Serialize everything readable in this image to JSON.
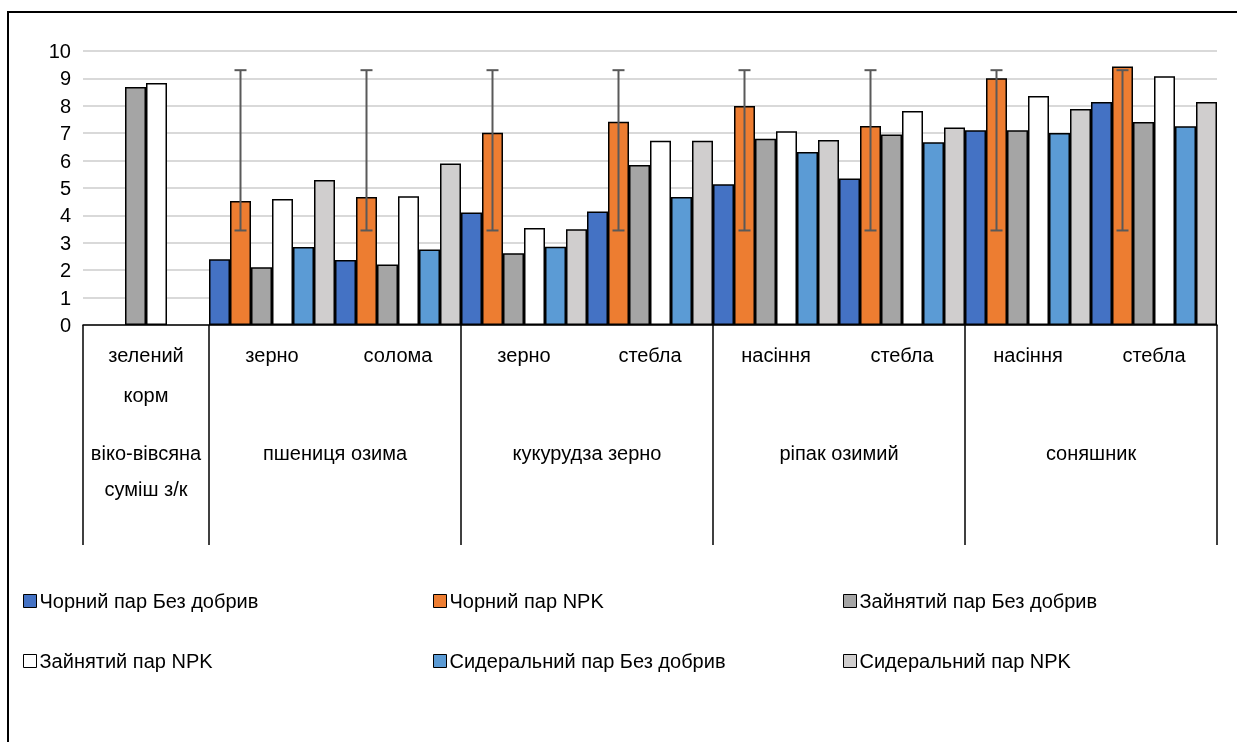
{
  "chart_data": {
    "type": "bar",
    "categories": [
      "зелений корм",
      "зерно",
      "солома",
      "зерно",
      "стебла",
      "насіння",
      "стебла",
      "насіння",
      "стебла"
    ],
    "annotations": [
      "віко-вівсяна суміш з/к",
      "пшениця озима",
      "кукурудза зерно",
      "ріпак озимий",
      "соняшник"
    ],
    "series": [
      {
        "name": "Чорний пар Без добрив",
        "color": "#4472c4",
        "values": [
          null,
          2.4,
          2.37,
          4.11,
          4.14,
          5.14,
          5.35,
          7.11,
          8.14
        ]
      },
      {
        "name": "Чорний пар NPK",
        "color": "#ed7d31",
        "values": [
          null,
          4.53,
          4.67,
          7.02,
          7.42,
          7.99,
          7.26,
          9.01,
          9.43
        ],
        "errors": [
          null,
          [
            3.45,
            9.3
          ],
          [
            3.45,
            9.3
          ],
          [
            3.45,
            9.3
          ],
          [
            3.45,
            9.3
          ],
          [
            3.45,
            9.3
          ],
          [
            3.45,
            9.3
          ],
          [
            3.45,
            9.3
          ],
          [
            3.45,
            9.3
          ]
        ]
      },
      {
        "name": "Зайнятий пар Без добрив",
        "color": "#a5a5a5",
        "values": [
          8.69,
          2.11,
          2.21,
          2.62,
          5.84,
          6.8,
          6.95,
          7.11,
          7.41
        ]
      },
      {
        "name": "Зайнятий пар NPK",
        "color": "#ffffff",
        "values": [
          8.83,
          4.6,
          4.7,
          3.54,
          6.72,
          7.07,
          7.81,
          8.36,
          9.08
        ]
      },
      {
        "name": "Сидеральний пар Без добрив",
        "color": "#5b9bd5",
        "values": [
          null,
          2.85,
          2.76,
          2.86,
          4.67,
          6.31,
          6.67,
          7.01,
          7.25
        ]
      },
      {
        "name": "Сидеральний пар NPK",
        "color": "#d0cece",
        "values": [
          null,
          5.29,
          5.89,
          3.49,
          6.72,
          6.75,
          7.21,
          7.88,
          8.14
        ]
      }
    ],
    "ylim": [
      0,
      10
    ],
    "yticks": [
      0,
      1,
      2,
      3,
      4,
      5,
      6,
      7,
      8,
      9,
      10
    ],
    "grid": "y",
    "legend": "bottom"
  }
}
